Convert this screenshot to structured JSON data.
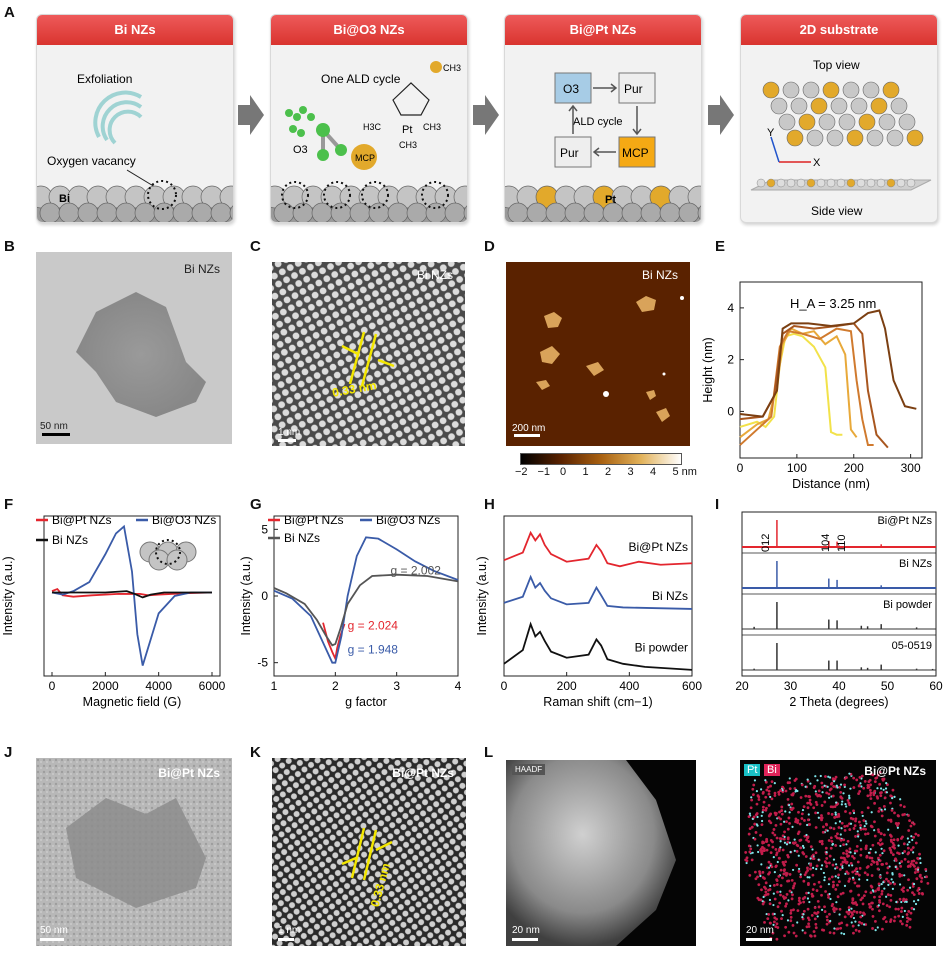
{
  "panels": {
    "A": {
      "letter": "A",
      "cards": [
        {
          "title": "Bi NZs",
          "lines": [
            "Exfoliation",
            "Oxygen vacancy",
            "Bi"
          ]
        },
        {
          "title": "Bi@O3 NZs",
          "lines": [
            "One ALD cycle",
            "O3",
            "MCP",
            "CH3",
            "H3C",
            "Pt",
            "CH3",
            "CH3"
          ]
        },
        {
          "title": "Bi@Pt NZs",
          "lines": [
            "O3",
            "Pur",
            "ALD cycle",
            "Pur",
            "MCP",
            "Pt"
          ]
        },
        {
          "title": "2D substrate",
          "lines": [
            "Top view",
            "Y",
            "X",
            "Side view"
          ]
        }
      ]
    },
    "B": {
      "letter": "B",
      "label": "Bi NZs",
      "scale": "50 nm"
    },
    "C": {
      "letter": "C",
      "label": "Bi NZs",
      "measure": "0.33 nm",
      "scale": "1 nm"
    },
    "D": {
      "letter": "D",
      "label": "Bi NZs",
      "scale": "200 nm",
      "colorbar_ticks": [
        "−2",
        "−1",
        "0",
        "1",
        "2",
        "3",
        "4",
        "5 nm"
      ]
    },
    "E": {
      "letter": "E",
      "annotation": "H_A = 3.25 nm"
    },
    "F": {
      "letter": "F"
    },
    "G": {
      "letter": "G",
      "annotations": [
        "g = 2.002",
        "g = 2.024",
        "g = 1.948"
      ]
    },
    "H": {
      "letter": "H"
    },
    "I": {
      "letter": "I",
      "peak_labels": [
        "012",
        "104",
        "110"
      ]
    },
    "J": {
      "letter": "J",
      "label": "Bi@Pt NZs",
      "scale": "50 nm"
    },
    "K": {
      "letter": "K",
      "label": "Bi@Pt NZs",
      "measure": "0.33 nm",
      "scale": "1 nm"
    },
    "L": {
      "letter": "L",
      "haadf": "HAADF",
      "scale1": "20 nm",
      "scale2": "20 nm",
      "legend_pt": "Pt",
      "legend_bi": "Bi",
      "label": "Bi@Pt NZs"
    }
  },
  "chart_data": [
    {
      "panel": "E",
      "type": "line",
      "xlabel": "Distance (nm)",
      "ylabel": "Height (nm)",
      "xlim": [
        0,
        320
      ],
      "ylim": [
        -1.8,
        5
      ],
      "xticks": [
        0,
        100,
        200,
        300
      ],
      "yticks": [
        0,
        2,
        4
      ],
      "series": [
        {
          "color": "#f2e24a",
          "x": [
            0,
            30,
            45,
            60,
            70,
            80,
            95,
            110,
            130,
            150,
            160,
            170,
            180
          ],
          "y": [
            -0.6,
            -0.4,
            -0.6,
            -0.2,
            1.8,
            2.9,
            3.0,
            2.9,
            2.5,
            1.7,
            -0.8,
            -0.9,
            -0.9
          ]
        },
        {
          "color": "#e8a93a",
          "x": [
            0,
            30,
            50,
            65,
            75,
            90,
            110,
            130,
            150,
            170,
            185,
            195,
            205
          ],
          "y": [
            -1.0,
            -0.5,
            -0.3,
            1.0,
            2.6,
            3.2,
            3.0,
            3.1,
            2.6,
            2.9,
            2.2,
            -0.7,
            -1.0
          ]
        },
        {
          "color": "#d07a2e",
          "x": [
            0,
            35,
            55,
            70,
            85,
            110,
            140,
            170,
            195,
            205,
            215,
            225,
            235
          ],
          "y": [
            -1.3,
            -0.6,
            -0.2,
            2.5,
            3.1,
            3.0,
            2.8,
            3.2,
            3.1,
            1.2,
            -0.3,
            -1.3,
            -1.3
          ]
        },
        {
          "color": "#a8561f",
          "x": [
            0,
            40,
            60,
            75,
            95,
            130,
            170,
            200,
            215,
            225,
            240,
            260
          ],
          "y": [
            -0.3,
            -0.2,
            0.6,
            3.0,
            3.3,
            3.2,
            3.3,
            3.4,
            3.0,
            0.8,
            -0.9,
            -1.4
          ]
        },
        {
          "color": "#7b3f12",
          "x": [
            0,
            40,
            65,
            75,
            90,
            120,
            160,
            200,
            225,
            245,
            255,
            270,
            290,
            310
          ],
          "y": [
            -0.1,
            -0.2,
            0.8,
            3.2,
            3.4,
            3.4,
            3.3,
            3.4,
            3.8,
            3.9,
            3.2,
            1.2,
            0.2,
            0.1
          ]
        }
      ]
    },
    {
      "panel": "F",
      "type": "line",
      "xlabel": "Magnetic field (G)",
      "ylabel": "Intensity (a.u.)",
      "xlim": [
        -300,
        6300
      ],
      "ylim": [
        -1.2,
        1.1
      ],
      "xticks": [
        0,
        2000,
        4000,
        6000
      ],
      "series": [
        {
          "name": "Bi@Pt NZs",
          "color": "#e3262e",
          "x": [
            0,
            200,
            400,
            800,
            1500,
            2500,
            3000,
            3300,
            3600,
            4000,
            5000,
            6000
          ],
          "y": [
            0.02,
            0.05,
            -0.04,
            -0.06,
            -0.04,
            -0.02,
            -0.02,
            -0.02,
            -0.04,
            -0.03,
            -0.01,
            0.0
          ]
        },
        {
          "name": "Bi@O3 NZs",
          "color": "#3a5ba8",
          "x": [
            0,
            400,
            800,
            1400,
            2000,
            2400,
            2700,
            3000,
            3200,
            3400,
            3600,
            4000,
            4600,
            5200,
            6000
          ],
          "y": [
            0.0,
            -0.03,
            0.02,
            0.15,
            0.55,
            0.85,
            0.95,
            0.3,
            -0.6,
            -1.05,
            -0.8,
            -0.3,
            -0.05,
            0.0,
            0.0
          ]
        },
        {
          "name": "Bi NZs",
          "color": "#111111",
          "x": [
            0,
            1000,
            2000,
            2800,
            3100,
            3400,
            3700,
            4200,
            5000,
            6000
          ],
          "y": [
            0.0,
            0.0,
            0.0,
            0.02,
            -0.02,
            -0.07,
            -0.03,
            0.0,
            0.0,
            0.0
          ]
        }
      ]
    },
    {
      "panel": "G",
      "type": "line",
      "xlabel": "g factor",
      "ylabel": "Intensity (a.u.)",
      "xlim": [
        1,
        4
      ],
      "ylim": [
        -6,
        6
      ],
      "xticks": [
        1,
        2,
        3,
        4
      ],
      "yticks": [
        -5,
        0,
        5
      ],
      "series": [
        {
          "name": "Bi@Pt NZs",
          "color": "#e3262e",
          "x": [
            1.8,
            1.88,
            1.95,
            2.0,
            2.03,
            2.08,
            2.15
          ],
          "y": [
            -2.0,
            -3.4,
            -4.2,
            -4.7,
            -3.9,
            -3.0,
            -2.1
          ]
        },
        {
          "name": "Bi@O3 NZs",
          "color": "#3a5ba8",
          "x": [
            1.0,
            1.3,
            1.6,
            1.8,
            1.95,
            2.0,
            2.1,
            2.2,
            2.35,
            2.5,
            2.7,
            3.0,
            3.3,
            3.6,
            4.0
          ],
          "y": [
            0.4,
            -0.2,
            -1.5,
            -3.5,
            -5.0,
            -5.0,
            -3.0,
            0.0,
            3.0,
            4.4,
            4.3,
            3.5,
            2.6,
            1.9,
            1.2
          ]
        },
        {
          "name": "Bi NZs",
          "color": "#555555",
          "x": [
            1.0,
            1.2,
            1.5,
            1.7,
            1.85,
            1.95,
            2.0,
            2.08,
            2.2,
            2.4,
            2.6,
            3.0,
            3.5,
            4.0
          ],
          "y": [
            0.6,
            0.2,
            -0.6,
            -1.8,
            -3.0,
            -3.7,
            -3.6,
            -2.5,
            -0.6,
            0.8,
            1.5,
            1.6,
            1.5,
            1.1
          ]
        }
      ]
    },
    {
      "panel": "H",
      "type": "line",
      "xlabel": "Raman shift (cm−1)",
      "ylabel": "Intensity (a.u.)",
      "xlim": [
        0,
        600
      ],
      "xticks": [
        0,
        200,
        400,
        600
      ],
      "series": [
        {
          "name": "Bi@Pt NZs",
          "color": "#e3262e",
          "x": [
            0,
            60,
            85,
            100,
            115,
            130,
            150,
            200,
            270,
            295,
            310,
            330,
            370,
            430,
            500,
            600
          ],
          "y": [
            7.6,
            8.1,
            9.4,
            8.9,
            9.3,
            8.6,
            8.0,
            7.5,
            7.7,
            8.6,
            8.2,
            7.4,
            7.2,
            7.5,
            7.3,
            7.4
          ]
        },
        {
          "name": "Bi NZs",
          "color": "#3a5ba8",
          "x": [
            0,
            60,
            85,
            100,
            115,
            130,
            150,
            200,
            270,
            295,
            310,
            330,
            380,
            600
          ],
          "y": [
            4.8,
            5.2,
            6.5,
            5.8,
            6.1,
            5.6,
            5.1,
            4.7,
            4.8,
            5.8,
            5.3,
            4.6,
            4.5,
            4.4
          ]
        },
        {
          "name": "Bi powder",
          "color": "#111111",
          "x": [
            0,
            60,
            85,
            100,
            115,
            130,
            150,
            200,
            270,
            295,
            310,
            330,
            380,
            450,
            600
          ],
          "y": [
            0.8,
            1.7,
            3.4,
            2.6,
            2.9,
            2.3,
            1.6,
            1.2,
            1.4,
            2.4,
            2.0,
            1.1,
            0.8,
            0.6,
            0.4
          ]
        }
      ]
    },
    {
      "panel": "I",
      "type": "bar",
      "xlabel": "2 Theta (degrees)",
      "xlim": [
        20,
        60
      ],
      "xticks": [
        20,
        30,
        40,
        50,
        60
      ],
      "series": [
        {
          "name": "Bi@Pt NZs",
          "color": "#e3262e",
          "peaks": [
            [
              27.2,
              1.0
            ],
            [
              37.9,
              0.22
            ],
            [
              39.6,
              0.2
            ],
            [
              48.7,
              0.1
            ]
          ]
        },
        {
          "name": "Bi NZs",
          "color": "#3a5ba8",
          "peaks": [
            [
              27.2,
              1.0
            ],
            [
              37.9,
              0.35
            ],
            [
              39.6,
              0.3
            ],
            [
              48.7,
              0.1
            ]
          ]
        },
        {
          "name": "Bi powder",
          "color": "#333333",
          "peaks": [
            [
              22.5,
              0.08
            ],
            [
              27.2,
              1.0
            ],
            [
              37.9,
              0.35
            ],
            [
              39.6,
              0.32
            ],
            [
              44.6,
              0.12
            ],
            [
              45.9,
              0.1
            ],
            [
              48.7,
              0.18
            ],
            [
              56.0,
              0.06
            ]
          ]
        },
        {
          "name": "05-0519",
          "color": "#333333",
          "peaks": [
            [
              22.5,
              0.05
            ],
            [
              27.2,
              1.0
            ],
            [
              37.9,
              0.35
            ],
            [
              39.6,
              0.35
            ],
            [
              44.6,
              0.1
            ],
            [
              45.9,
              0.08
            ],
            [
              48.7,
              0.2
            ],
            [
              56.0,
              0.05
            ],
            [
              59.3,
              0.04
            ]
          ]
        }
      ]
    }
  ],
  "colors": {
    "header_red": "#e34a45",
    "gold": "#e2a92b",
    "blue": "#3a5ba8",
    "red": "#e3262e"
  }
}
